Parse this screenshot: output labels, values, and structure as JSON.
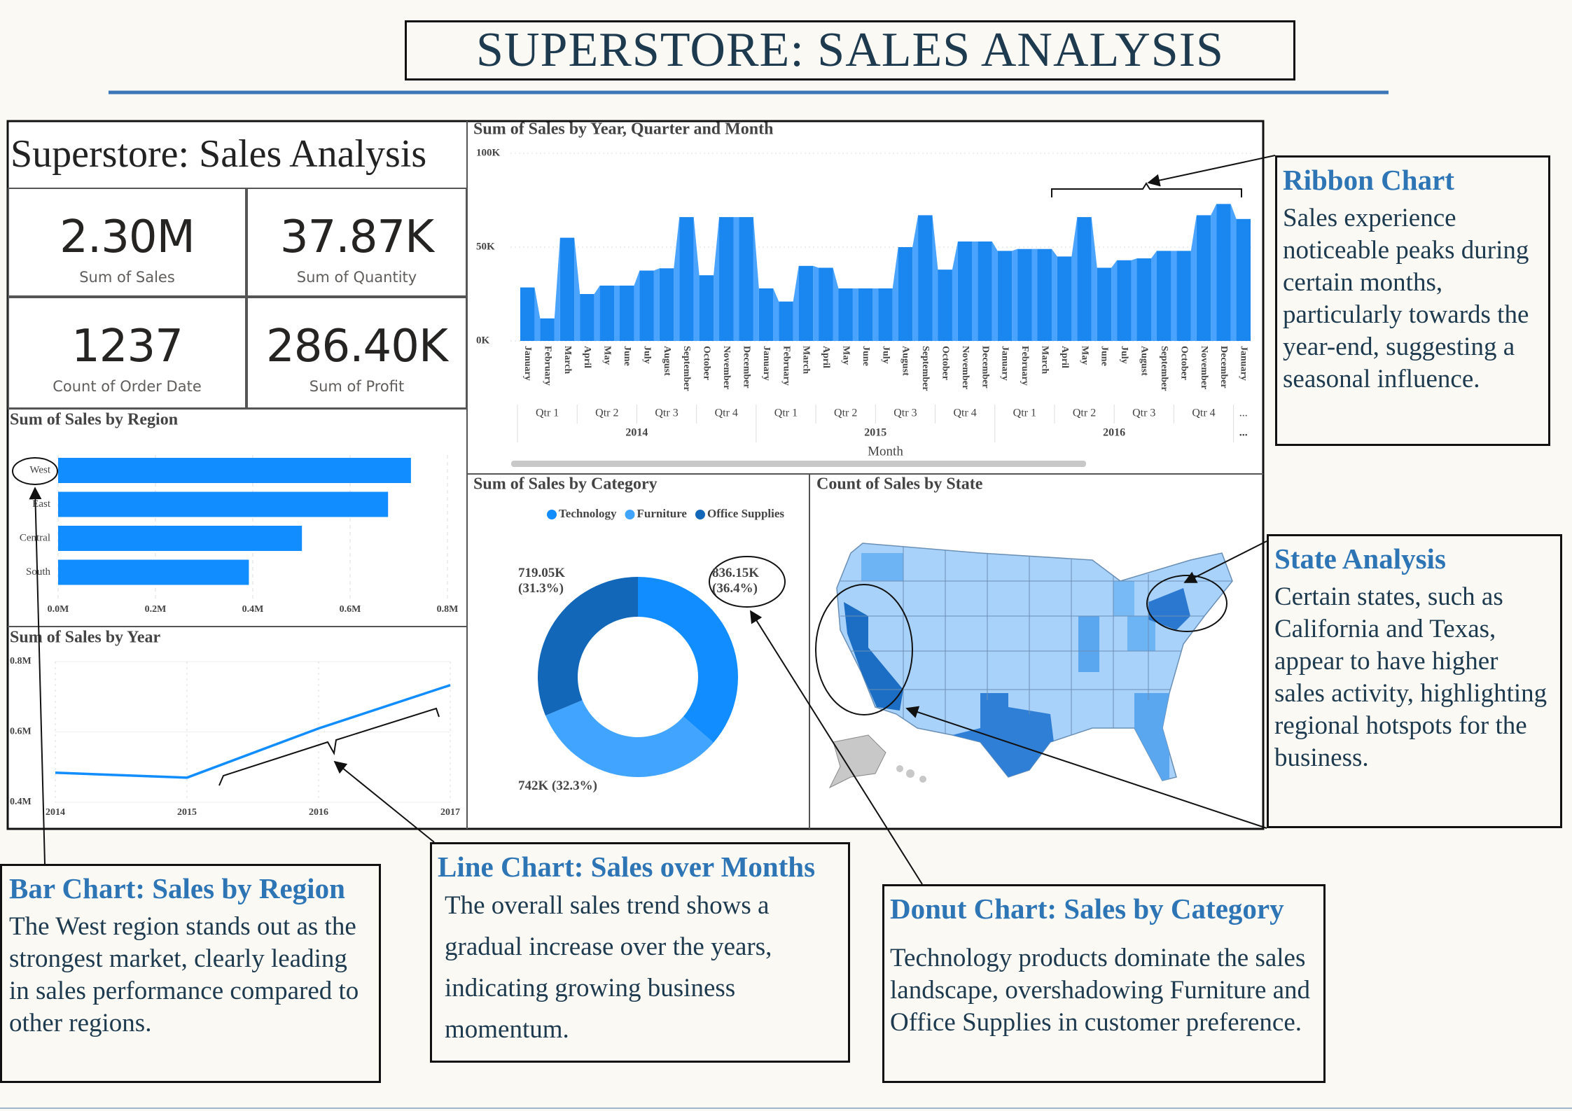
{
  "header": {
    "title": "SUPERSTORE: SALES ANALYSIS"
  },
  "dashboard": {
    "title": "Superstore: Sales Analysis",
    "kpis": [
      {
        "value": "2.30M",
        "label": "Sum of Sales"
      },
      {
        "value": "37.87K",
        "label": "Sum of Quantity"
      },
      {
        "value": "1237",
        "label": "Count of Order Date"
      },
      {
        "value": "286.40K",
        "label": "Sum of Profit"
      }
    ]
  },
  "chart_data": [
    {
      "type": "ribbon",
      "title": "Sum of Sales by Year, Quarter and Month",
      "xlabel": "Month",
      "categories": [
        "January",
        "February",
        "March",
        "April",
        "May",
        "June",
        "July",
        "August",
        "September",
        "October",
        "November",
        "December",
        "January",
        "February",
        "March",
        "April",
        "May",
        "June",
        "July",
        "August",
        "September",
        "October",
        "November",
        "December",
        "January",
        "February",
        "March",
        "April",
        "May",
        "June",
        "July",
        "August",
        "September",
        "October",
        "November",
        "December",
        "January"
      ],
      "quarters": [
        "Qtr 1",
        "Qtr 2",
        "Qtr 3",
        "Qtr 4",
        "Qtr 1",
        "Qtr 2",
        "Qtr 3",
        "Qtr 4",
        "Qtr 1",
        "Qtr 2",
        "Qtr 3",
        "Qtr 4",
        "..."
      ],
      "years": [
        "2014",
        "2015",
        "2016",
        "..."
      ],
      "values": [
        28500,
        12000,
        55000,
        25000,
        29500,
        29500,
        37500,
        38700,
        66000,
        35000,
        66000,
        66000,
        28000,
        21000,
        40000,
        39000,
        28000,
        28000,
        28000,
        50000,
        67000,
        38000,
        53000,
        53000,
        48000,
        49000,
        49000,
        45000,
        66000,
        39000,
        43000,
        44000,
        48000,
        48000,
        67000,
        73000,
        65000
      ],
      "color": "#1a86f0",
      "ribbon_color": "#4aa3ff",
      "ylim": [
        0,
        100000
      ],
      "yticks": [
        {
          "value": 0,
          "label": "0K"
        },
        {
          "value": 50000,
          "label": "50K"
        },
        {
          "value": 100000,
          "label": "100K"
        }
      ],
      "grid": true
    },
    {
      "type": "hbar",
      "title": "Sum of Sales by Region",
      "categories": [
        "West",
        "East",
        "Central",
        "South"
      ],
      "values": [
        0.725,
        0.678,
        0.501,
        0.392
      ],
      "color": "#118dff",
      "xlim": [
        0,
        0.8
      ],
      "xticks": [
        {
          "value": 0,
          "label": "0.0M"
        },
        {
          "value": 0.2,
          "label": "0.2M"
        },
        {
          "value": 0.4,
          "label": "0.4M"
        },
        {
          "value": 0.6,
          "label": "0.6M"
        },
        {
          "value": 0.8,
          "label": "0.8M"
        }
      ],
      "grid": true
    },
    {
      "type": "line",
      "title": "Sum of Sales by Year",
      "x": [
        2014,
        2015,
        2016,
        2017
      ],
      "values": [
        0.484,
        0.47,
        0.61,
        0.733
      ],
      "color": "#118dff",
      "xlim": [
        2014,
        2017
      ],
      "xticks": [
        2014,
        2015,
        2016,
        2017
      ],
      "ylim": [
        0.4,
        0.8
      ],
      "yticks": [
        {
          "value": 0.4,
          "label": "0.4M"
        },
        {
          "value": 0.6,
          "label": "0.6M"
        },
        {
          "value": 0.8,
          "label": "0.8M"
        }
      ],
      "grid": true
    },
    {
      "type": "donut",
      "title": "Sum of Sales by Category",
      "categories": [
        "Technology",
        "Furniture",
        "Office Supplies"
      ],
      "values": [
        836.15,
        742,
        719.05
      ],
      "value_labels": [
        "836.15K\n(36.4%)",
        "742K (32.3%)",
        "719.05K\n(31.3%)"
      ],
      "colors": [
        "#118dff",
        "#41a4ff",
        "#1267b8"
      ],
      "legend": "top"
    },
    {
      "type": "map",
      "title": "Count of Sales by State"
    }
  ],
  "annotations": [
    {
      "title": "Ribbon Chart",
      "text": "Sales experience noticeable peaks during certain months, particularly towards the year-end, suggesting a seasonal influence."
    },
    {
      "title": "State Analysis",
      "text": "Certain states, such as California and Texas, appear to have higher sales activity, highlighting regional hotspots for the business."
    },
    {
      "title": "Bar Chart: Sales by Region",
      "text": "The West region stands out as the strongest market, clearly leading in sales performance compared to other regions."
    },
    {
      "title": "Line Chart: Sales over Months",
      "text": "The overall sales trend shows a gradual increase over the years, indicating growing business momentum."
    },
    {
      "title": "Donut Chart: Sales by Category",
      "text": "Technology products dominate the sales landscape, overshadowing Furniture and Office Supplies in customer preference."
    }
  ]
}
